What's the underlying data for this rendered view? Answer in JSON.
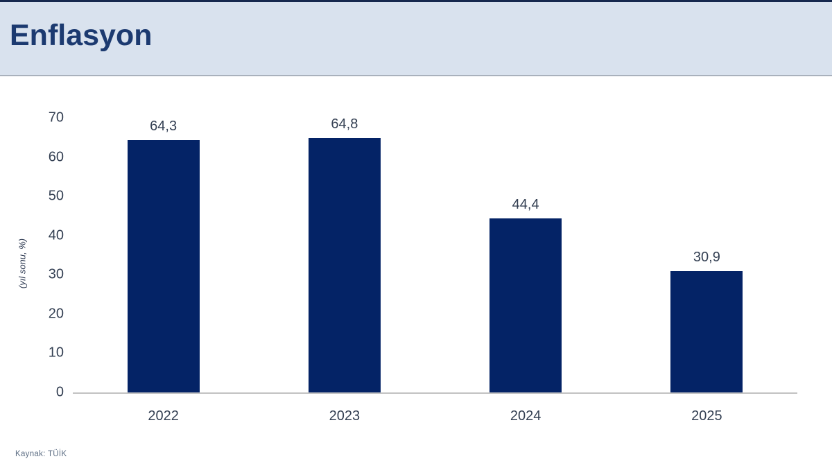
{
  "header": {
    "title": "Enflasyon"
  },
  "chart_data": {
    "type": "bar",
    "title": "Enflasyon",
    "categories": [
      "2022",
      "2023",
      "2024",
      "2025"
    ],
    "values": [
      64.3,
      64.8,
      44.4,
      30.9
    ],
    "value_labels": [
      "64,3",
      "64,8",
      "44,4",
      "30,9"
    ],
    "xlabel": "",
    "ylabel": "(yıl sonu, %)",
    "ylim": [
      0,
      70
    ],
    "yticks": [
      0,
      10,
      20,
      30,
      40,
      50,
      60,
      70
    ],
    "grid": false,
    "legend": "none",
    "bar_color": "#042366"
  },
  "footer": {
    "source": "Kaynak: TÜİK"
  },
  "colors": {
    "bar": "#042366",
    "header_bg": "#d9e2ee",
    "title_text": "#1c3a70",
    "axis_text": "#333f52",
    "axis_line": "#c2c2c2",
    "source_text": "#5c6d83",
    "top_line": "#16284e"
  }
}
